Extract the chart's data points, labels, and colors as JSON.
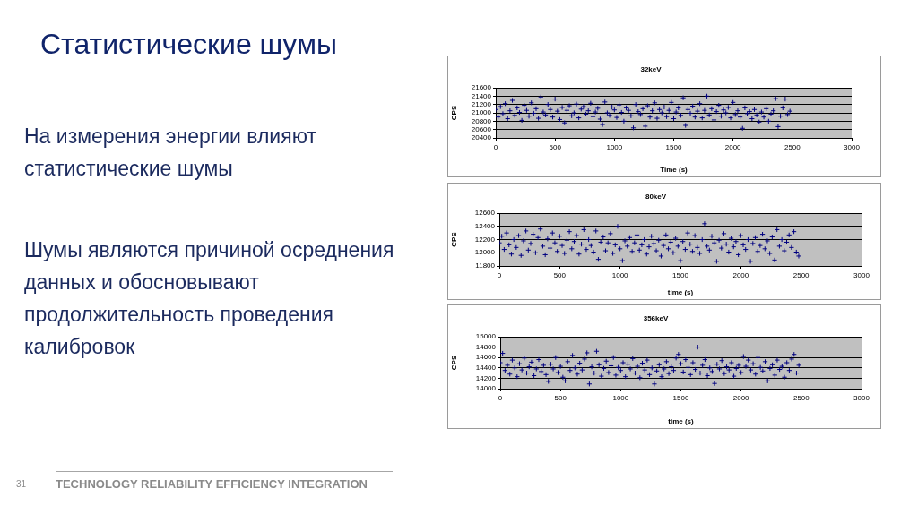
{
  "chart_data": [
    {
      "type": "other",
      "title": "Статистические шумы",
      "annotations": [
        "На измерения энергии влияют статистические шумы",
        "Шумы являются причиной осреднения данных и обосновывают продолжительность проведения калибровок",
        "31",
        "TECHNOLOGY RELIABILITY EFFICIENCY INTEGRATION"
      ]
    },
    {
      "type": "scatter",
      "title": "32keV",
      "xlabel": "Time (s)",
      "ylabel": "CPS",
      "marker": "cross",
      "grid": "y",
      "xlim": [
        0,
        3000
      ],
      "xticks": [
        0,
        500,
        1000,
        1500,
        2000,
        2500,
        3000
      ],
      "ylim": [
        20400,
        21600
      ],
      "yticks": [
        20400,
        20600,
        20800,
        21000,
        21200,
        21400,
        21600
      ],
      "x": [
        0,
        20,
        40,
        60,
        80,
        100,
        120,
        140,
        160,
        180,
        200,
        220,
        240,
        260,
        280,
        300,
        320,
        340,
        360,
        380,
        400,
        420,
        440,
        460,
        480,
        500,
        520,
        540,
        560,
        580,
        600,
        620,
        640,
        660,
        680,
        700,
        720,
        740,
        760,
        780,
        800,
        820,
        840,
        860,
        880,
        900,
        920,
        940,
        960,
        980,
        1000,
        1020,
        1040,
        1060,
        1080,
        1100,
        1120,
        1140,
        1160,
        1180,
        1200,
        1220,
        1240,
        1260,
        1280,
        1300,
        1320,
        1340,
        1360,
        1380,
        1400,
        1420,
        1440,
        1460,
        1480,
        1500,
        1520,
        1540,
        1560,
        1580,
        1600,
        1620,
        1640,
        1660,
        1680,
        1700,
        1720,
        1740,
        1760,
        1780,
        1800,
        1820,
        1840,
        1860,
        1880,
        1900,
        1920,
        1940,
        1960,
        1980,
        2000,
        2020,
        2040,
        2060,
        2080,
        2100,
        2120,
        2140,
        2160,
        2180,
        2200,
        2220,
        2240,
        2260,
        2280,
        2300,
        2320,
        2340,
        2360,
        2380,
        2400,
        2420,
        2440,
        2460,
        2480
      ],
      "series": [
        {
          "color": "#000080",
          "values": [
            21080,
            20900,
            21150,
            20980,
            21220,
            20860,
            21050,
            21300,
            20940,
            21120,
            21010,
            20820,
            21180,
            21060,
            20920,
            21240,
            20990,
            21100,
            20870,
            21380,
            21020,
            20950,
            21200,
            21080,
            20900,
            21330,
            21040,
            20840,
            21130,
            20760,
            21060,
            21170,
            20930,
            21000,
            21210,
            20880,
            21090,
            21150,
            20970,
            21050,
            21230,
            20910,
            21020,
            21110,
            20850,
            20720,
            21260,
            21000,
            20940,
            21140,
            21070,
            20890,
            21190,
            21010,
            20800,
            21120,
            21060,
            20930,
            20640,
            21200,
            21030,
            20960,
            21100,
            20680,
            21170,
            20900,
            21050,
            21240,
            20870,
            21080,
            21000,
            21140,
            20910,
            21060,
            21250,
            20860,
            21020,
            21120,
            20940,
            21360,
            20700,
            21080,
            20990,
            21160,
            20900,
            21040,
            21220,
            20880,
            21060,
            21400,
            20950,
            21100,
            20830,
            21030,
            21180,
            20920,
            21070,
            21000,
            21130,
            20880,
            21250,
            20960,
            21050,
            20900,
            20630,
            21120,
            20980,
            21030,
            20860,
            21080,
            20950,
            20780,
            21020,
            20900,
            21100,
            20800,
            20970,
            21050,
            21340,
            20670,
            20920,
            21120,
            21330,
            20960,
            21040
          ]
        }
      ]
    },
    {
      "type": "scatter",
      "title": "80keV",
      "xlabel": "time (s)",
      "ylabel": "CPS",
      "marker": "cross",
      "grid": "y",
      "xlim": [
        0,
        3000
      ],
      "xticks": [
        0,
        500,
        1000,
        1500,
        2000,
        2500,
        3000
      ],
      "ylim": [
        11800,
        12600
      ],
      "yticks": [
        11800,
        12000,
        12200,
        12400,
        12600
      ],
      "x": [
        0,
        20,
        40,
        60,
        80,
        100,
        120,
        140,
        160,
        180,
        200,
        220,
        240,
        260,
        280,
        300,
        320,
        340,
        360,
        380,
        400,
        420,
        440,
        460,
        480,
        500,
        520,
        540,
        560,
        580,
        600,
        620,
        640,
        660,
        680,
        700,
        720,
        740,
        760,
        780,
        800,
        820,
        840,
        860,
        880,
        900,
        920,
        940,
        960,
        980,
        1000,
        1020,
        1040,
        1060,
        1080,
        1100,
        1120,
        1140,
        1160,
        1180,
        1200,
        1220,
        1240,
        1260,
        1280,
        1300,
        1320,
        1340,
        1360,
        1380,
        1400,
        1420,
        1440,
        1460,
        1480,
        1500,
        1520,
        1540,
        1560,
        1580,
        1600,
        1620,
        1640,
        1660,
        1680,
        1700,
        1720,
        1740,
        1760,
        1780,
        1800,
        1820,
        1840,
        1860,
        1880,
        1900,
        1920,
        1940,
        1960,
        1980,
        2000,
        2020,
        2040,
        2060,
        2080,
        2100,
        2120,
        2140,
        2160,
        2180,
        2200,
        2220,
        2240,
        2260,
        2280,
        2300,
        2320,
        2340,
        2360,
        2380,
        2400,
        2420,
        2440,
        2460,
        2480
      ],
      "series": [
        {
          "color": "#000080",
          "values": [
            12150,
            12250,
            12050,
            12300,
            12120,
            11980,
            12200,
            12080,
            12260,
            11960,
            12180,
            12330,
            12040,
            12140,
            12280,
            12000,
            12230,
            12360,
            12100,
            11970,
            12210,
            12070,
            12300,
            12150,
            12020,
            12250,
            12110,
            11990,
            12190,
            12320,
            12060,
            12170,
            12260,
            11980,
            12130,
            12350,
            12050,
            12200,
            12110,
            12010,
            12330,
            11900,
            12160,
            12240,
            12030,
            12150,
            12290,
            11990,
            12120,
            12400,
            12060,
            11880,
            12180,
            12100,
            12230,
            12020,
            12150,
            12270,
            12040,
            12120,
            12200,
            11980,
            12090,
            12250,
            12140,
            12030,
            12190,
            11950,
            12110,
            12270,
            12060,
            12160,
            12000,
            12220,
            12100,
            11880,
            12170,
            12050,
            12300,
            12130,
            12020,
            12260,
            12080,
            11990,
            12200,
            12440,
            12100,
            12040,
            12250,
            12150,
            11870,
            12190,
            12070,
            12290,
            12130,
            12010,
            12220,
            12090,
            12170,
            11970,
            12260,
            12120,
            12050,
            12200,
            11870,
            12140,
            12230,
            12020,
            12110,
            12280,
            12060,
            12180,
            11990,
            12240,
            11890,
            12350,
            12100,
            12200,
            12030,
            12160,
            12270,
            12080,
            12320,
            12010,
            11950
          ]
        }
      ]
    },
    {
      "type": "scatter",
      "title": "356keV",
      "xlabel": "time (s)",
      "ylabel": "CPS",
      "marker": "cross",
      "grid": "y",
      "xlim": [
        0,
        3000
      ],
      "xticks": [
        0,
        500,
        1000,
        1500,
        2000,
        2500,
        3000
      ],
      "ylim": [
        14000,
        15000
      ],
      "yticks": [
        14000,
        14200,
        14400,
        14600,
        14800,
        15000
      ],
      "x": [
        0,
        20,
        40,
        60,
        80,
        100,
        120,
        140,
        160,
        180,
        200,
        220,
        240,
        260,
        280,
        300,
        320,
        340,
        360,
        380,
        400,
        420,
        440,
        460,
        480,
        500,
        520,
        540,
        560,
        580,
        600,
        620,
        640,
        660,
        680,
        700,
        720,
        740,
        760,
        780,
        800,
        820,
        840,
        860,
        880,
        900,
        920,
        940,
        960,
        980,
        1000,
        1020,
        1040,
        1060,
        1080,
        1100,
        1120,
        1140,
        1160,
        1180,
        1200,
        1220,
        1240,
        1260,
        1280,
        1300,
        1320,
        1340,
        1360,
        1380,
        1400,
        1420,
        1440,
        1460,
        1480,
        1500,
        1520,
        1540,
        1560,
        1580,
        1600,
        1620,
        1640,
        1660,
        1680,
        1700,
        1720,
        1740,
        1760,
        1780,
        1800,
        1820,
        1840,
        1860,
        1880,
        1900,
        1920,
        1940,
        1960,
        1980,
        2000,
        2020,
        2040,
        2060,
        2080,
        2100,
        2120,
        2140,
        2160,
        2180,
        2200,
        2220,
        2240,
        2260,
        2280,
        2300,
        2320,
        2340,
        2360,
        2380,
        2400,
        2420,
        2440,
        2460,
        2480
      ],
      "series": [
        {
          "color": "#000080",
          "values": [
            14500,
            14680,
            14350,
            14450,
            14280,
            14550,
            14400,
            14230,
            14480,
            14360,
            14590,
            14300,
            14420,
            14510,
            14250,
            14380,
            14560,
            14330,
            14450,
            14270,
            14140,
            14470,
            14380,
            14600,
            14310,
            14430,
            14220,
            14150,
            14520,
            14350,
            14640,
            14400,
            14280,
            14490,
            14360,
            14570,
            14690,
            14090,
            14420,
            14300,
            14720,
            14460,
            14240,
            14390,
            14530,
            14310,
            14440,
            14600,
            14260,
            14410,
            14350,
            14500,
            14230,
            14470,
            14380,
            14580,
            14300,
            14430,
            14210,
            14490,
            14360,
            14550,
            14270,
            14400,
            14090,
            14340,
            14460,
            14230,
            14380,
            14520,
            14290,
            14420,
            14350,
            14590,
            14660,
            14480,
            14320,
            14560,
            14410,
            14270,
            14500,
            14370,
            14800,
            14300,
            14450,
            14560,
            14250,
            14400,
            14330,
            14100,
            14470,
            14380,
            14540,
            14290,
            14420,
            14360,
            14500,
            14240,
            14390,
            14450,
            14310,
            14620,
            14430,
            14550,
            14360,
            14480,
            14280,
            14600,
            14410,
            14340,
            14520,
            14150,
            14390,
            14460,
            14260,
            14550,
            14370,
            14430,
            14220,
            14500,
            14350,
            14570,
            14660,
            14300,
            14450
          ]
        }
      ]
    }
  ]
}
